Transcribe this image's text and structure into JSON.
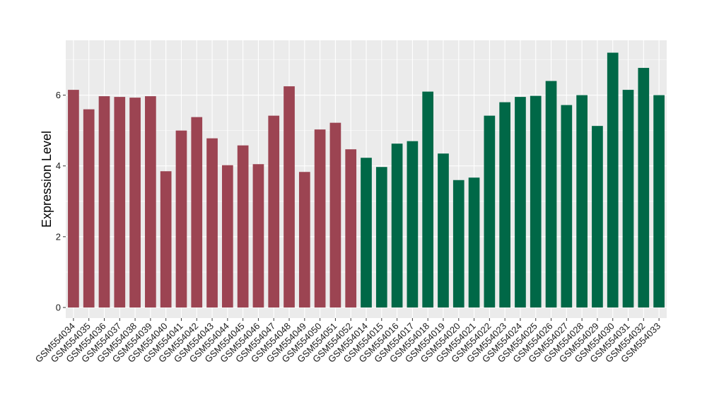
{
  "chart_data": {
    "type": "bar",
    "ylabel": "Expression Level",
    "xlabel": "",
    "ylim": [
      -0.3,
      7.55
    ],
    "yticks": [
      0,
      2,
      4,
      6
    ],
    "grid": true,
    "panel_background": "#ebebeb",
    "grid_color": "#ffffff",
    "series": [
      {
        "color": "#9c4452",
        "categories": [
          "GSM554034",
          "GSM554035",
          "GSM554036",
          "GSM554037",
          "GSM554038",
          "GSM554039",
          "GSM554040",
          "GSM554041",
          "GSM554042",
          "GSM554043",
          "GSM554044",
          "GSM554045",
          "GSM554046",
          "GSM554047",
          "GSM554048",
          "GSM554049",
          "GSM554050",
          "GSM554051",
          "GSM554052"
        ],
        "values": [
          6.15,
          5.6,
          5.97,
          5.95,
          5.93,
          5.97,
          3.85,
          5.0,
          5.38,
          4.78,
          4.02,
          4.58,
          4.05,
          5.42,
          6.25,
          3.83,
          5.03,
          5.22,
          4.47
        ]
      },
      {
        "color": "#006847",
        "categories": [
          "GSM554014",
          "GSM554015",
          "GSM554016",
          "GSM554017",
          "GSM554018",
          "GSM554019",
          "GSM554020",
          "GSM554021",
          "GSM554022",
          "GSM554023",
          "GSM554024",
          "GSM554025",
          "GSM554026",
          "GSM554027",
          "GSM554028",
          "GSM554029",
          "GSM554030",
          "GSM554031",
          "GSM554032",
          "GSM554033"
        ],
        "values": [
          4.23,
          3.97,
          4.63,
          4.7,
          6.1,
          4.35,
          3.6,
          3.67,
          5.42,
          5.8,
          5.95,
          5.98,
          6.4,
          5.72,
          6.0,
          5.13,
          7.2,
          6.15,
          6.77,
          6.0
        ]
      }
    ]
  }
}
